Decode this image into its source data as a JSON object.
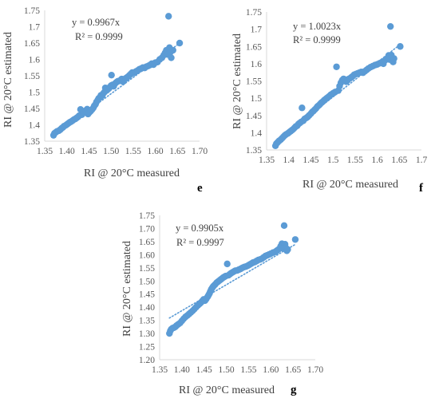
{
  "colors": {
    "point": "#5b9bd5",
    "trendline": "#5b9bd5",
    "axis": "#d9d9d9",
    "text": "#404040"
  },
  "chart_data": [
    {
      "type": "scatter",
      "panel": "e",
      "xlabel": "RI @ 20°C measured",
      "ylabel": "RI @ 20°C estimated",
      "xlim": [
        1.35,
        1.7
      ],
      "ylim": [
        1.35,
        1.75
      ],
      "xticks": [
        "1.35",
        "1.40",
        "1.45",
        "1.50",
        "1.55",
        "1.60",
        "1.65",
        "1.70"
      ],
      "yticks": [
        "1.35",
        "1.4",
        "1.45",
        "1.5",
        "1.55",
        "1.6",
        "1.65",
        "1.7",
        "1.75"
      ],
      "grid": false,
      "equation": "y = 0.9967x",
      "r2": "R² = 0.9999",
      "trendline_slope": 0.9967,
      "points": [
        [
          1.37,
          1.368
        ],
        [
          1.372,
          1.374
        ],
        [
          1.375,
          1.377
        ],
        [
          1.378,
          1.38
        ],
        [
          1.382,
          1.382
        ],
        [
          1.385,
          1.385
        ],
        [
          1.388,
          1.389
        ],
        [
          1.391,
          1.392
        ],
        [
          1.394,
          1.396
        ],
        [
          1.398,
          1.399
        ],
        [
          1.401,
          1.402
        ],
        [
          1.404,
          1.405
        ],
        [
          1.407,
          1.408
        ],
        [
          1.41,
          1.41
        ],
        [
          1.413,
          1.413
        ],
        [
          1.416,
          1.416
        ],
        [
          1.419,
          1.418
        ],
        [
          1.422,
          1.421
        ],
        [
          1.425,
          1.424
        ],
        [
          1.428,
          1.428
        ],
        [
          1.431,
          1.447
        ],
        [
          1.434,
          1.431
        ],
        [
          1.437,
          1.436
        ],
        [
          1.44,
          1.44
        ],
        [
          1.443,
          1.444
        ],
        [
          1.446,
          1.448
        ],
        [
          1.448,
          1.433
        ],
        [
          1.451,
          1.438
        ],
        [
          1.454,
          1.442
        ],
        [
          1.457,
          1.447
        ],
        [
          1.46,
          1.452
        ],
        [
          1.462,
          1.458
        ],
        [
          1.465,
          1.463
        ],
        [
          1.467,
          1.47
        ],
        [
          1.47,
          1.476
        ],
        [
          1.472,
          1.481
        ],
        [
          1.475,
          1.484
        ],
        [
          1.477,
          1.49
        ],
        [
          1.48,
          1.489
        ],
        [
          1.482,
          1.495
        ],
        [
          1.485,
          1.5
        ],
        [
          1.487,
          1.513
        ],
        [
          1.49,
          1.505
        ],
        [
          1.492,
          1.508
        ],
        [
          1.495,
          1.511
        ],
        [
          1.497,
          1.515
        ],
        [
          1.5,
          1.52
        ],
        [
          1.501,
          1.552
        ],
        [
          1.503,
          1.522
        ],
        [
          1.506,
          1.518
        ],
        [
          1.509,
          1.526
        ],
        [
          1.512,
          1.53
        ],
        [
          1.515,
          1.533
        ],
        [
          1.518,
          1.534
        ],
        [
          1.521,
          1.536
        ],
        [
          1.524,
          1.54
        ],
        [
          1.527,
          1.532
        ],
        [
          1.53,
          1.538
        ],
        [
          1.533,
          1.542
        ],
        [
          1.536,
          1.545
        ],
        [
          1.539,
          1.548
        ],
        [
          1.542,
          1.552
        ],
        [
          1.545,
          1.556
        ],
        [
          1.548,
          1.56
        ],
        [
          1.552,
          1.559
        ],
        [
          1.556,
          1.563
        ],
        [
          1.56,
          1.566
        ],
        [
          1.564,
          1.57
        ],
        [
          1.568,
          1.572
        ],
        [
          1.572,
          1.575
        ],
        [
          1.576,
          1.574
        ],
        [
          1.58,
          1.578
        ],
        [
          1.584,
          1.58
        ],
        [
          1.588,
          1.583
        ],
        [
          1.592,
          1.587
        ],
        [
          1.596,
          1.584
        ],
        [
          1.6,
          1.59
        ],
        [
          1.605,
          1.592
        ],
        [
          1.61,
          1.6
        ],
        [
          1.615,
          1.605
        ],
        [
          1.619,
          1.613
        ],
        [
          1.622,
          1.62
        ],
        [
          1.625,
          1.628
        ],
        [
          1.628,
          1.615
        ],
        [
          1.63,
          1.732
        ],
        [
          1.632,
          1.636
        ],
        [
          1.634,
          1.622
        ],
        [
          1.636,
          1.605
        ],
        [
          1.64,
          1.628
        ],
        [
          1.655,
          1.65
        ]
      ]
    },
    {
      "type": "scatter",
      "panel": "f",
      "xlabel": "RI @ 20°C measured",
      "ylabel": "RI @ 20°C estimated",
      "xlim": [
        1.35,
        1.7
      ],
      "ylim": [
        1.35,
        1.75
      ],
      "xticks": [
        "1.35",
        "1.4",
        "1.45",
        "1.5",
        "1.55",
        "1.6",
        "1.65",
        "1.7"
      ],
      "yticks": [
        "1.35",
        "1.4",
        "1.45",
        "1.5",
        "1.55",
        "1.6",
        "1.65",
        "1.7",
        "1.75"
      ],
      "grid": false,
      "equation": "y = 1.0023x",
      "r2": "R² = 0.9999",
      "trendline_slope": 1.0023,
      "points": [
        [
          1.37,
          1.362
        ],
        [
          1.372,
          1.368
        ],
        [
          1.375,
          1.372
        ],
        [
          1.378,
          1.376
        ],
        [
          1.382,
          1.38
        ],
        [
          1.385,
          1.384
        ],
        [
          1.388,
          1.388
        ],
        [
          1.391,
          1.392
        ],
        [
          1.394,
          1.395
        ],
        [
          1.398,
          1.398
        ],
        [
          1.401,
          1.401
        ],
        [
          1.404,
          1.404
        ],
        [
          1.407,
          1.407
        ],
        [
          1.41,
          1.41
        ],
        [
          1.413,
          1.414
        ],
        [
          1.416,
          1.418
        ],
        [
          1.419,
          1.42
        ],
        [
          1.422,
          1.425
        ],
        [
          1.425,
          1.428
        ],
        [
          1.428,
          1.431
        ],
        [
          1.43,
          1.472
        ],
        [
          1.433,
          1.435
        ],
        [
          1.436,
          1.44
        ],
        [
          1.44,
          1.443
        ],
        [
          1.443,
          1.446
        ],
        [
          1.446,
          1.45
        ],
        [
          1.45,
          1.455
        ],
        [
          1.453,
          1.46
        ],
        [
          1.456,
          1.463
        ],
        [
          1.459,
          1.467
        ],
        [
          1.462,
          1.471
        ],
        [
          1.465,
          1.476
        ],
        [
          1.468,
          1.479
        ],
        [
          1.471,
          1.483
        ],
        [
          1.474,
          1.487
        ],
        [
          1.477,
          1.49
        ],
        [
          1.48,
          1.494
        ],
        [
          1.483,
          1.497
        ],
        [
          1.486,
          1.5
        ],
        [
          1.489,
          1.503
        ],
        [
          1.492,
          1.506
        ],
        [
          1.495,
          1.51
        ],
        [
          1.498,
          1.512
        ],
        [
          1.501,
          1.515
        ],
        [
          1.505,
          1.518
        ],
        [
          1.508,
          1.591
        ],
        [
          1.512,
          1.522
        ],
        [
          1.515,
          1.535
        ],
        [
          1.518,
          1.545
        ],
        [
          1.521,
          1.552
        ],
        [
          1.524,
          1.556
        ],
        [
          1.527,
          1.554
        ],
        [
          1.53,
          1.548
        ],
        [
          1.533,
          1.552
        ],
        [
          1.536,
          1.556
        ],
        [
          1.539,
          1.558
        ],
        [
          1.542,
          1.561
        ],
        [
          1.545,
          1.564
        ],
        [
          1.548,
          1.568
        ],
        [
          1.552,
          1.57
        ],
        [
          1.556,
          1.572
        ],
        [
          1.56,
          1.574
        ],
        [
          1.564,
          1.576
        ],
        [
          1.568,
          1.574
        ],
        [
          1.572,
          1.578
        ],
        [
          1.576,
          1.582
        ],
        [
          1.58,
          1.586
        ],
        [
          1.585,
          1.59
        ],
        [
          1.59,
          1.593
        ],
        [
          1.595,
          1.596
        ],
        [
          1.6,
          1.598
        ],
        [
          1.605,
          1.601
        ],
        [
          1.61,
          1.604
        ],
        [
          1.614,
          1.6
        ],
        [
          1.618,
          1.61
        ],
        [
          1.622,
          1.615
        ],
        [
          1.626,
          1.624
        ],
        [
          1.628,
          1.612
        ],
        [
          1.63,
          1.708
        ],
        [
          1.632,
          1.625
        ],
        [
          1.634,
          1.61
        ],
        [
          1.636,
          1.605
        ],
        [
          1.638,
          1.615
        ],
        [
          1.652,
          1.65
        ]
      ]
    },
    {
      "type": "scatter",
      "panel": "g",
      "xlabel": "RI @ 20°C measured",
      "ylabel": "RI @ 20°C estimated",
      "xlim": [
        1.35,
        1.7
      ],
      "ylim": [
        1.2,
        1.75
      ],
      "xticks": [
        "1.35",
        "1.40",
        "1.45",
        "1.50",
        "1.55",
        "1.60",
        "1.65",
        "1.70"
      ],
      "yticks": [
        "1.20",
        "1.25",
        "1.30",
        "1.35",
        "1.40",
        "1.45",
        "1.50",
        "1.55",
        "1.60",
        "1.65",
        "1.70",
        "1.75"
      ],
      "grid": false,
      "equation": "y = 0.9905x",
      "r2": "R² = 0.9997",
      "trendline_slope": 0.9905,
      "points": [
        [
          1.372,
          1.3
        ],
        [
          1.374,
          1.31
        ],
        [
          1.376,
          1.316
        ],
        [
          1.379,
          1.32
        ],
        [
          1.382,
          1.322
        ],
        [
          1.385,
          1.325
        ],
        [
          1.388,
          1.33
        ],
        [
          1.392,
          1.335
        ],
        [
          1.396,
          1.34
        ],
        [
          1.4,
          1.348
        ],
        [
          1.404,
          1.356
        ],
        [
          1.408,
          1.363
        ],
        [
          1.412,
          1.368
        ],
        [
          1.416,
          1.374
        ],
        [
          1.42,
          1.38
        ],
        [
          1.424,
          1.386
        ],
        [
          1.428,
          1.393
        ],
        [
          1.432,
          1.4
        ],
        [
          1.436,
          1.407
        ],
        [
          1.44,
          1.413
        ],
        [
          1.443,
          1.418
        ],
        [
          1.446,
          1.424
        ],
        [
          1.449,
          1.43
        ],
        [
          1.452,
          1.425
        ],
        [
          1.455,
          1.432
        ],
        [
          1.458,
          1.44
        ],
        [
          1.46,
          1.446
        ],
        [
          1.462,
          1.452
        ],
        [
          1.464,
          1.46
        ],
        [
          1.466,
          1.468
        ],
        [
          1.468,
          1.473
        ],
        [
          1.47,
          1.478
        ],
        [
          1.472,
          1.482
        ],
        [
          1.475,
          1.487
        ],
        [
          1.478,
          1.493
        ],
        [
          1.481,
          1.497
        ],
        [
          1.484,
          1.501
        ],
        [
          1.487,
          1.505
        ],
        [
          1.49,
          1.509
        ],
        [
          1.493,
          1.513
        ],
        [
          1.496,
          1.516
        ],
        [
          1.499,
          1.519
        ],
        [
          1.502,
          1.565
        ],
        [
          1.505,
          1.522
        ],
        [
          1.508,
          1.526
        ],
        [
          1.511,
          1.53
        ],
        [
          1.514,
          1.533
        ],
        [
          1.517,
          1.536
        ],
        [
          1.52,
          1.539
        ],
        [
          1.524,
          1.54
        ],
        [
          1.528,
          1.543
        ],
        [
          1.532,
          1.546
        ],
        [
          1.536,
          1.55
        ],
        [
          1.54,
          1.553
        ],
        [
          1.544,
          1.555
        ],
        [
          1.548,
          1.558
        ],
        [
          1.552,
          1.562
        ],
        [
          1.556,
          1.566
        ],
        [
          1.56,
          1.57
        ],
        [
          1.564,
          1.572
        ],
        [
          1.568,
          1.576
        ],
        [
          1.572,
          1.58
        ],
        [
          1.576,
          1.582
        ],
        [
          1.58,
          1.585
        ],
        [
          1.584,
          1.59
        ],
        [
          1.588,
          1.595
        ],
        [
          1.592,
          1.598
        ],
        [
          1.596,
          1.601
        ],
        [
          1.6,
          1.604
        ],
        [
          1.605,
          1.608
        ],
        [
          1.61,
          1.611
        ],
        [
          1.614,
          1.616
        ],
        [
          1.618,
          1.621
        ],
        [
          1.622,
          1.632
        ],
        [
          1.625,
          1.642
        ],
        [
          1.627,
          1.624
        ],
        [
          1.63,
          1.711
        ],
        [
          1.632,
          1.64
        ],
        [
          1.634,
          1.626
        ],
        [
          1.636,
          1.615
        ],
        [
          1.638,
          1.62
        ],
        [
          1.655,
          1.658
        ]
      ]
    }
  ]
}
